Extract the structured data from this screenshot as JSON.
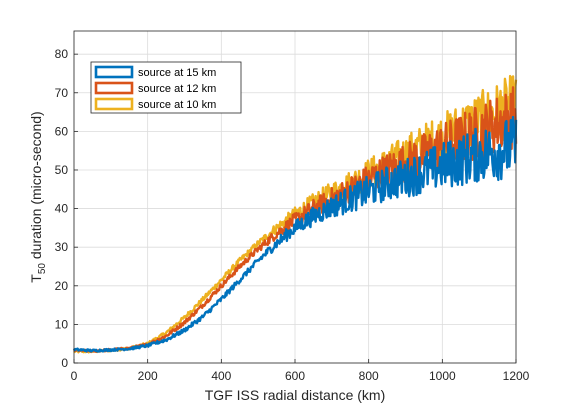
{
  "chart_data": {
    "type": "line",
    "title": "",
    "xlabel": "TGF ISS radial distance (km)",
    "ylabel": {
      "prefix": "T",
      "subscript": "50",
      "suffix": " duration (micro-second)"
    },
    "xlim": [
      0,
      1200
    ],
    "ylim": [
      0,
      86
    ],
    "xticks": [
      0,
      200,
      400,
      600,
      800,
      1000,
      1200
    ],
    "yticks": [
      0,
      10,
      20,
      30,
      40,
      50,
      60,
      70,
      80
    ],
    "grid": true,
    "legend_position": "top-left",
    "series": [
      {
        "name": "source at 15 km",
        "color": "#0072BD",
        "x": [
          0,
          50,
          100,
          150,
          200,
          250,
          300,
          350,
          400,
          450,
          500,
          550,
          600,
          650,
          700,
          750,
          800,
          850,
          900,
          950,
          1000,
          1050,
          1100,
          1150,
          1200
        ],
        "y": [
          3.5,
          3.2,
          3.4,
          3.7,
          4.5,
          6.0,
          8.5,
          12.0,
          16.5,
          21.5,
          26.5,
          31.0,
          35.0,
          38.0,
          40.5,
          42.5,
          44.5,
          46.5,
          48.0,
          49.5,
          51.0,
          52.5,
          54.0,
          55.0,
          56.0
        ]
      },
      {
        "name": "source at 12 km",
        "color": "#D95319",
        "x": [
          0,
          50,
          100,
          150,
          200,
          250,
          300,
          350,
          400,
          450,
          500,
          550,
          600,
          650,
          700,
          750,
          800,
          850,
          900,
          950,
          1000,
          1050,
          1100,
          1150,
          1200
        ],
        "y": [
          3.3,
          3.1,
          3.4,
          3.8,
          4.8,
          7.0,
          10.5,
          15.0,
          20.0,
          25.0,
          29.5,
          33.5,
          37.0,
          40.0,
          42.5,
          45.0,
          47.5,
          50.0,
          52.0,
          54.0,
          56.0,
          58.0,
          60.0,
          62.0,
          64.0
        ]
      },
      {
        "name": "source at 10 km",
        "color": "#EDB120",
        "x": [
          0,
          50,
          100,
          150,
          200,
          250,
          300,
          350,
          400,
          450,
          500,
          550,
          600,
          650,
          700,
          750,
          800,
          850,
          900,
          950,
          1000,
          1050,
          1100,
          1150,
          1200
        ],
        "y": [
          3.0,
          3.0,
          3.3,
          3.8,
          5.0,
          7.8,
          11.8,
          16.5,
          21.5,
          26.5,
          31.0,
          35.0,
          38.5,
          41.5,
          44.0,
          46.5,
          49.0,
          51.5,
          54.0,
          56.5,
          58.5,
          61.0,
          63.0,
          65.0,
          67.0
        ]
      }
    ]
  }
}
